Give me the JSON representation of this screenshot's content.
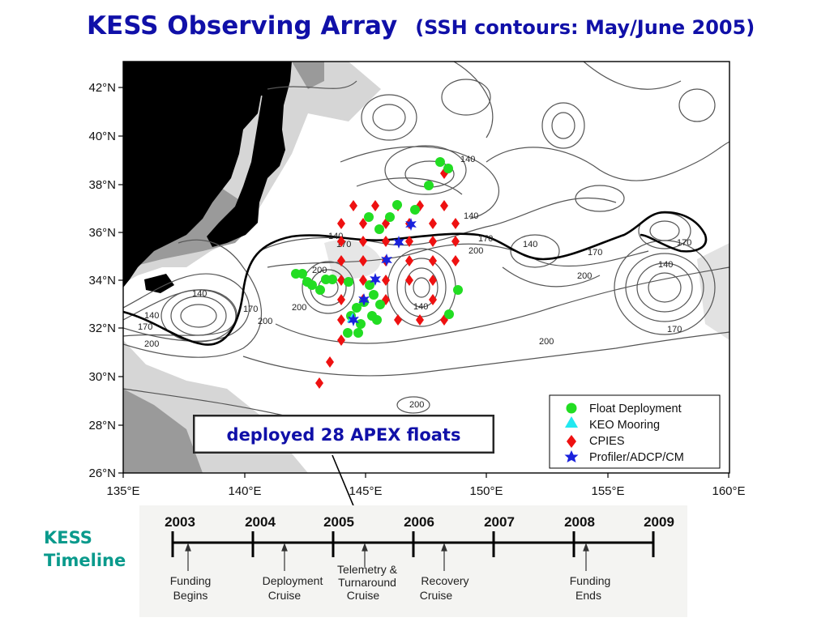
{
  "title": {
    "main": "KESS Observing Array",
    "sub": "(SSH contours: May/June 2005)"
  },
  "map": {
    "lat_labels": [
      "42°N",
      "40°N",
      "38°N",
      "36°N",
      "34°N",
      "32°N",
      "30°N",
      "28°N",
      "26°N"
    ],
    "lon_labels": [
      "135°E",
      "140°E",
      "145°E",
      "150°E",
      "155°E",
      "160°E"
    ],
    "contour_labels": [
      "140",
      "140",
      "140",
      "140",
      "140",
      "140",
      "140",
      "140",
      "170",
      "170",
      "170",
      "170",
      "170",
      "170",
      "170",
      "200",
      "200",
      "200",
      "200",
      "200",
      "200",
      "200",
      "200"
    ],
    "callout": "deployed 28 APEX floats"
  },
  "legend": {
    "items": [
      {
        "label": "Float Deployment",
        "symbol": "circle",
        "color": "#22dd22"
      },
      {
        "label": "KEO Mooring",
        "symbol": "triangle",
        "color": "#22e8f0"
      },
      {
        "label": "CPIES",
        "symbol": "diamond",
        "color": "#ee1111"
      },
      {
        "label": "Profiler/ADCP/CM",
        "symbol": "star",
        "color": "#1a22dd"
      }
    ]
  },
  "timeline": {
    "label_line1": "KESS",
    "label_line2": "Timeline",
    "years": [
      "2003",
      "2004",
      "2005",
      "2006",
      "2007",
      "2008",
      "2009"
    ],
    "events": [
      {
        "line1": "Funding",
        "line2": "Begins"
      },
      {
        "line1": "Deployment",
        "line2": "Cruise"
      },
      {
        "line1": "Telemetry  &",
        "line2": "Turnaround",
        "line3": "Cruise"
      },
      {
        "line1": "Recovery",
        "line2": "Cruise"
      },
      {
        "line1": "Funding",
        "line2": "Ends"
      }
    ]
  }
}
